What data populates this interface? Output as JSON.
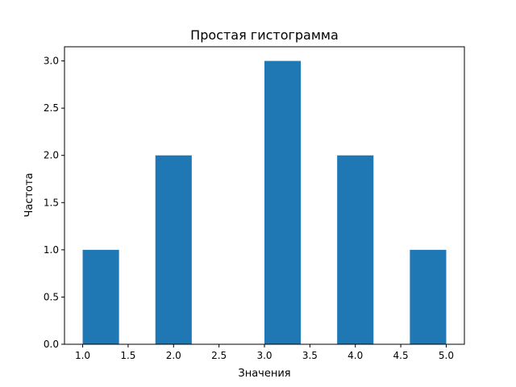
{
  "chart_data": {
    "type": "bar",
    "title": "Простая гистограмма",
    "xlabel": "Значения",
    "ylabel": "Частота",
    "bin_edges": [
      1.0,
      1.4,
      1.8,
      2.2,
      2.6,
      3.0,
      3.4,
      3.8,
      4.2,
      4.6,
      5.0
    ],
    "values": [
      1,
      0,
      2,
      0,
      0,
      3,
      0,
      2,
      0,
      1
    ],
    "xlim": [
      0.8,
      5.2
    ],
    "ylim": [
      0,
      3.15
    ],
    "xticks": [
      "1.0",
      "1.5",
      "2.0",
      "2.5",
      "3.0",
      "3.5",
      "4.0",
      "4.5",
      "5.0"
    ],
    "yticks": [
      "0.0",
      "0.5",
      "1.0",
      "1.5",
      "2.0",
      "2.5",
      "3.0"
    ],
    "grid": false,
    "bar_color": "#1f77b4"
  }
}
